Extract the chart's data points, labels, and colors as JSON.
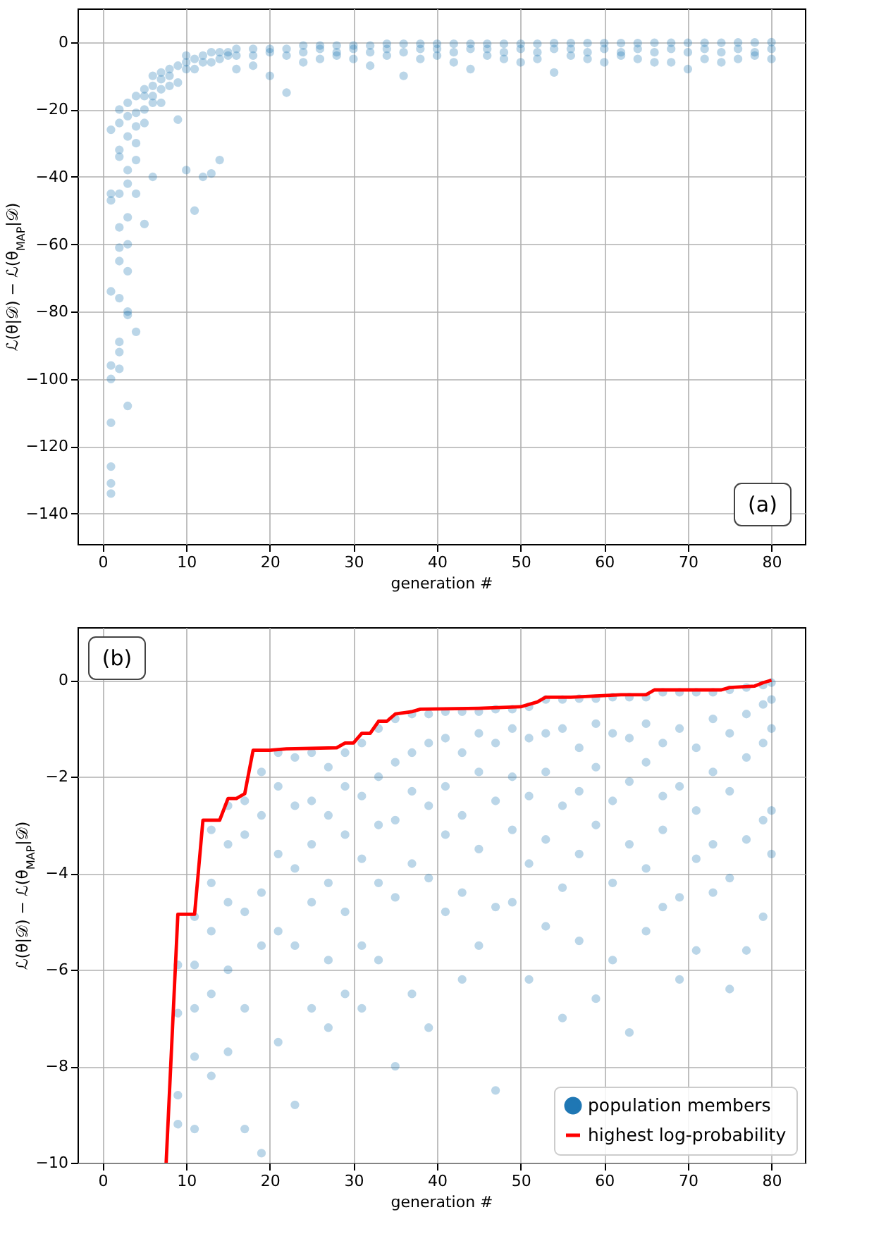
{
  "chart_data": [
    {
      "type": "scatter",
      "xlabel": "generation #",
      "ylabel": "ℒ(θ|𝒟) − ℒ(θ$_{MAP}$|𝒟)",
      "annotations": [
        "(a)"
      ],
      "xlim": [
        -3,
        84
      ],
      "ylim": [
        -149,
        10
      ],
      "xticks": [
        0,
        10,
        20,
        30,
        40,
        50,
        60,
        70,
        80
      ],
      "yticks": [
        -140,
        -120,
        -100,
        -80,
        -60,
        -40,
        -20,
        0
      ],
      "grid": true,
      "marker": "circle",
      "series": [
        {
          "color": "#1f77b4",
          "x": [
            1,
            1,
            1,
            1,
            1,
            1,
            1,
            1,
            1,
            1,
            2,
            2,
            2,
            2,
            2,
            2,
            2,
            2,
            2,
            2,
            2,
            2,
            3,
            3,
            3,
            3,
            3,
            3,
            3,
            3,
            3,
            3,
            3,
            4,
            4,
            4,
            4,
            4,
            4,
            4,
            5,
            5,
            5,
            5,
            5,
            6,
            6,
            6,
            6,
            6,
            7,
            7,
            7,
            7,
            8,
            8,
            8,
            9,
            9,
            9,
            10,
            10,
            10,
            10,
            11,
            11,
            11,
            12,
            12,
            12,
            13,
            13,
            13,
            14,
            14,
            14,
            15,
            15,
            16,
            16,
            16,
            18,
            18,
            18,
            20,
            20,
            20,
            22,
            22,
            22,
            24,
            24,
            24,
            26,
            26,
            26,
            28,
            28,
            28,
            30,
            30,
            30,
            32,
            32,
            32,
            34,
            34,
            34,
            36,
            36,
            36,
            38,
            38,
            38,
            40,
            40,
            40,
            42,
            42,
            42,
            44,
            44,
            44,
            46,
            46,
            46,
            48,
            48,
            48,
            50,
            50,
            50,
            52,
            52,
            52,
            54,
            54,
            54,
            56,
            56,
            56,
            58,
            58,
            58,
            60,
            60,
            60,
            62,
            62,
            62,
            64,
            64,
            64,
            66,
            66,
            66,
            68,
            68,
            68,
            70,
            70,
            70,
            72,
            72,
            72,
            74,
            74,
            74,
            76,
            76,
            76,
            78,
            78,
            78,
            80,
            80,
            80
          ],
          "values": [
            -26,
            -45,
            -47,
            -74,
            -96,
            -100,
            -113,
            -126,
            -131,
            -134,
            -20,
            -24,
            -32,
            -34,
            -45,
            -55,
            -61,
            -65,
            -76,
            -89,
            -92,
            -97,
            -18,
            -22,
            -28,
            -38,
            -42,
            -52,
            -60,
            -68,
            -80,
            -81,
            -108,
            -16,
            -21,
            -25,
            -30,
            -35,
            -45,
            -86,
            -14,
            -16,
            -20,
            -24,
            -54,
            -10,
            -13,
            -16,
            -18,
            -40,
            -9,
            -11,
            -14,
            -18,
            -8,
            -10,
            -13,
            -7,
            -12,
            -23,
            -4,
            -6,
            -8,
            -38,
            -5,
            -8,
            -50,
            -4,
            -6,
            -40,
            -3,
            -6,
            -39,
            -3,
            -5,
            -35,
            -3,
            -4,
            -2,
            -4,
            -8,
            -2,
            -4,
            -7,
            -2,
            -3,
            -10,
            -2,
            -4,
            -15,
            -1,
            -3,
            -6,
            -1,
            -2,
            -5,
            -1,
            -3,
            -4,
            -1,
            -2,
            -5,
            -1,
            -3,
            -7,
            -0.5,
            -2,
            -4,
            -0.5,
            -3,
            -10,
            -0.5,
            -2,
            -5,
            -0.5,
            -2,
            -4,
            -0.5,
            -3,
            -6,
            -0.5,
            -2,
            -8,
            -0.5,
            -2,
            -4,
            -0.5,
            -3,
            -5,
            -0.5,
            -2,
            -6,
            -0.5,
            -3,
            -5,
            -0.3,
            -2,
            -9,
            -0.3,
            -2,
            -4,
            -0.3,
            -3,
            -5,
            -0.3,
            -2,
            -6,
            -0.3,
            -3,
            -4,
            -0.3,
            -2,
            -5,
            -0.2,
            -3,
            -6,
            -0.2,
            -2,
            -6,
            -0.2,
            -3,
            -8,
            -0.2,
            -2,
            -5,
            -0.2,
            -3,
            -6,
            -0.1,
            -2,
            -5,
            -0.1,
            -3,
            -4,
            0,
            -2,
            -5
          ]
        }
      ]
    },
    {
      "type": "scatter",
      "xlabel": "generation #",
      "ylabel": "ℒ(θ|𝒟) − ℒ(θ$_{MAP}$|𝒟)",
      "annotations": [
        "(b)"
      ],
      "xlim": [
        -3,
        84
      ],
      "ylim": [
        -10,
        1.1
      ],
      "xticks": [
        0,
        10,
        20,
        30,
        40,
        50,
        60,
        70,
        80
      ],
      "yticks": [
        -10,
        -8,
        -6,
        -4,
        -2,
        0
      ],
      "grid": true,
      "legend": "bottom right",
      "series": [
        {
          "name": "population members",
          "color": "#1f77b4",
          "marker": "circle",
          "x": [
            9,
            9,
            9,
            9,
            11,
            11,
            11,
            11,
            11,
            13,
            13,
            13,
            13,
            13,
            15,
            15,
            15,
            15,
            15,
            17,
            17,
            17,
            17,
            17,
            19,
            19,
            19,
            19,
            19,
            21,
            21,
            21,
            21,
            21,
            23,
            23,
            23,
            23,
            23,
            25,
            25,
            25,
            25,
            25,
            27,
            27,
            27,
            27,
            27,
            29,
            29,
            29,
            29,
            29,
            31,
            31,
            31,
            31,
            31,
            33,
            33,
            33,
            33,
            33,
            35,
            35,
            35,
            35,
            35,
            37,
            37,
            37,
            37,
            37,
            39,
            39,
            39,
            39,
            39,
            41,
            41,
            41,
            41,
            41,
            43,
            43,
            43,
            43,
            43,
            45,
            45,
            45,
            45,
            45,
            47,
            47,
            47,
            47,
            47,
            49,
            49,
            49,
            49,
            49,
            51,
            51,
            51,
            51,
            51,
            53,
            53,
            53,
            53,
            53,
            55,
            55,
            55,
            55,
            55,
            57,
            57,
            57,
            57,
            57,
            59,
            59,
            59,
            59,
            59,
            61,
            61,
            61,
            61,
            61,
            63,
            63,
            63,
            63,
            63,
            65,
            65,
            65,
            65,
            65,
            67,
            67,
            67,
            67,
            67,
            69,
            69,
            69,
            69,
            69,
            71,
            71,
            71,
            71,
            71,
            73,
            73,
            73,
            73,
            73,
            75,
            75,
            75,
            75,
            75,
            77,
            77,
            77,
            77,
            77,
            79,
            79,
            79,
            79,
            79,
            80,
            80,
            80,
            80,
            80
          ],
          "values": [
            -5.9,
            -6.9,
            -8.6,
            -9.2,
            -4.9,
            -5.9,
            -6.8,
            -7.8,
            -9.3,
            -3.1,
            -4.2,
            -5.2,
            -6.5,
            -8.2,
            -2.6,
            -3.4,
            -4.6,
            -6,
            -7.7,
            -2.5,
            -3.2,
            -4.8,
            -6.8,
            -9.3,
            -1.9,
            -2.8,
            -4.4,
            -5.5,
            -9.8,
            -1.5,
            -2.2,
            -3.6,
            -5.2,
            -7.5,
            -1.6,
            -2.6,
            -3.9,
            -5.5,
            -8.8,
            -1.5,
            -2.5,
            -3.4,
            -4.6,
            -6.8,
            -1.8,
            -2.8,
            -4.2,
            -5.8,
            -7.2,
            -1.5,
            -2.2,
            -3.2,
            -4.8,
            -6.5,
            -1.3,
            -2.4,
            -3.7,
            -5.5,
            -6.8,
            -1,
            -2,
            -3,
            -4.2,
            -5.8,
            -0.8,
            -1.7,
            -2.9,
            -4.5,
            -8,
            -0.7,
            -1.5,
            -2.3,
            -3.8,
            -6.5,
            -0.7,
            -1.3,
            -2.6,
            -4.1,
            -7.2,
            -0.65,
            -1.2,
            -2.2,
            -3.2,
            -4.8,
            -0.65,
            -1.5,
            -2.8,
            -4.4,
            -6.2,
            -0.65,
            -1.1,
            -1.9,
            -3.5,
            -5.5,
            -0.6,
            -1.3,
            -2.5,
            -4.7,
            -8.5,
            -0.6,
            -1,
            -2,
            -3.1,
            -4.6,
            -0.55,
            -1.2,
            -2.4,
            -3.8,
            -6.2,
            -0.4,
            -1.1,
            -1.9,
            -3.3,
            -5.1,
            -0.4,
            -1,
            -2.6,
            -4.3,
            -7,
            -0.38,
            -1.4,
            -2.3,
            -3.6,
            -5.4,
            -0.38,
            -0.9,
            -1.8,
            -3,
            -6.6,
            -0.35,
            -1.1,
            -2.5,
            -4.2,
            -5.8,
            -0.35,
            -1.2,
            -2.1,
            -3.4,
            -7.3,
            -0.35,
            -0.9,
            -1.7,
            -3.9,
            -5.2,
            -0.25,
            -1.3,
            -2.4,
            -3.1,
            -4.7,
            -0.25,
            -1,
            -2.2,
            -4.5,
            -6.2,
            -0.25,
            -1.4,
            -2.7,
            -3.7,
            -5.6,
            -0.25,
            -0.8,
            -1.9,
            -3.4,
            -4.4,
            -0.2,
            -1.1,
            -2.3,
            -4.1,
            -6.4,
            -0.15,
            -0.7,
            -1.6,
            -3.3,
            -5.6,
            -0.1,
            -0.5,
            -1.3,
            -2.9,
            -4.9,
            -0.05,
            -0.4,
            -1,
            -2.7,
            -3.6
          ]
        },
        {
          "name": "highest log-probability",
          "type": "line",
          "line_style": "solid",
          "color": "#ff0000",
          "x": [
            7.6,
            9,
            11,
            12,
            14,
            15,
            16,
            17,
            18,
            20,
            22,
            28,
            29,
            30,
            31,
            32,
            33,
            34,
            35,
            37,
            38,
            45,
            50,
            52,
            53,
            56,
            62,
            65,
            66,
            74,
            75,
            78,
            79,
            80
          ],
          "values": [
            -10,
            -4.85,
            -4.85,
            -2.9,
            -2.9,
            -2.45,
            -2.45,
            -2.35,
            -1.45,
            -1.45,
            -1.42,
            -1.4,
            -1.3,
            -1.3,
            -1.1,
            -1.1,
            -0.85,
            -0.85,
            -0.7,
            -0.65,
            -0.6,
            -0.58,
            -0.55,
            -0.45,
            -0.35,
            -0.35,
            -0.3,
            -0.3,
            -0.2,
            -0.2,
            -0.15,
            -0.12,
            -0.05,
            0
          ]
        }
      ]
    }
  ]
}
